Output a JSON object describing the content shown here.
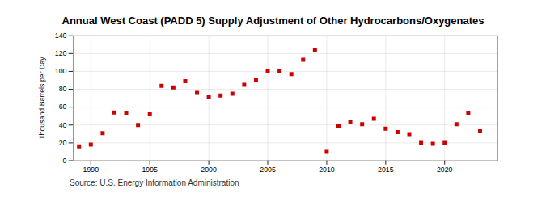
{
  "chart_data": {
    "type": "scatter",
    "title": "Annual West Coast (PADD 5) Supply Adjustment of Other Hydrocarbons/Oxygenates",
    "ylabel": "Thousand Barrels per Day",
    "annotations": [
      "Source: U.S. Energy Information Administration"
    ],
    "x": [
      1989,
      1990,
      1991,
      1992,
      1993,
      1994,
      1995,
      1996,
      1997,
      1998,
      1999,
      2000,
      2001,
      2002,
      2003,
      2004,
      2005,
      2006,
      2007,
      2008,
      2009,
      2010,
      2011,
      2012,
      2013,
      2014,
      2015,
      2016,
      2017,
      2018,
      2019,
      2020,
      2021,
      2022,
      2023
    ],
    "values": [
      16,
      18,
      31,
      54,
      53,
      40,
      52,
      84,
      82,
      89,
      76,
      71,
      73,
      75,
      85,
      90,
      100,
      100,
      97,
      113,
      124,
      10,
      39,
      43,
      41,
      47,
      36,
      32,
      29,
      20,
      19,
      20,
      41,
      53,
      33
    ],
    "color": "#cc0000",
    "marker": "square",
    "xlim": [
      1988.5,
      2024.5
    ],
    "ylim": [
      0,
      140
    ],
    "xticks": [
      1990,
      1995,
      2000,
      2005,
      2010,
      2015,
      2020
    ],
    "yticks": [
      0,
      20,
      40,
      60,
      80,
      100,
      120,
      140
    ],
    "grid": true
  }
}
